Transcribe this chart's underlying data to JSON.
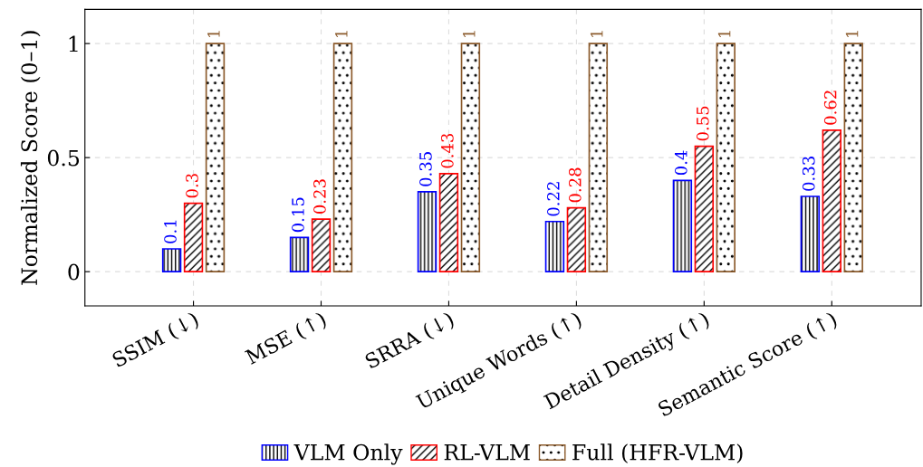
{
  "chart_data": {
    "type": "bar",
    "ylabel": "Normalized Score (0–1)",
    "categories": [
      "SSIM (↓)",
      "MSE (↑)",
      "SRRA (↓)",
      "Unique Words (↑)",
      "Detail Density (↑)",
      "Semantic Score (↑)"
    ],
    "series": [
      {
        "name": "VLM Only",
        "color": "#0000ff",
        "values": [
          0.1,
          0.15,
          0.35,
          0.22,
          0.4,
          0.33
        ]
      },
      {
        "name": "RL-VLM",
        "color": "#ff0000",
        "values": [
          0.3,
          0.23,
          0.43,
          0.28,
          0.55,
          0.62
        ]
      },
      {
        "name": "Full (HFR-VLM)",
        "color": "#8b5a2b",
        "values": [
          1,
          1,
          1,
          1,
          1,
          1
        ]
      }
    ],
    "ylim": [
      -0.15,
      1.15
    ],
    "yticks": [
      0,
      0.5,
      1
    ],
    "grid": true,
    "legend": "bottom",
    "data_labels": true
  }
}
